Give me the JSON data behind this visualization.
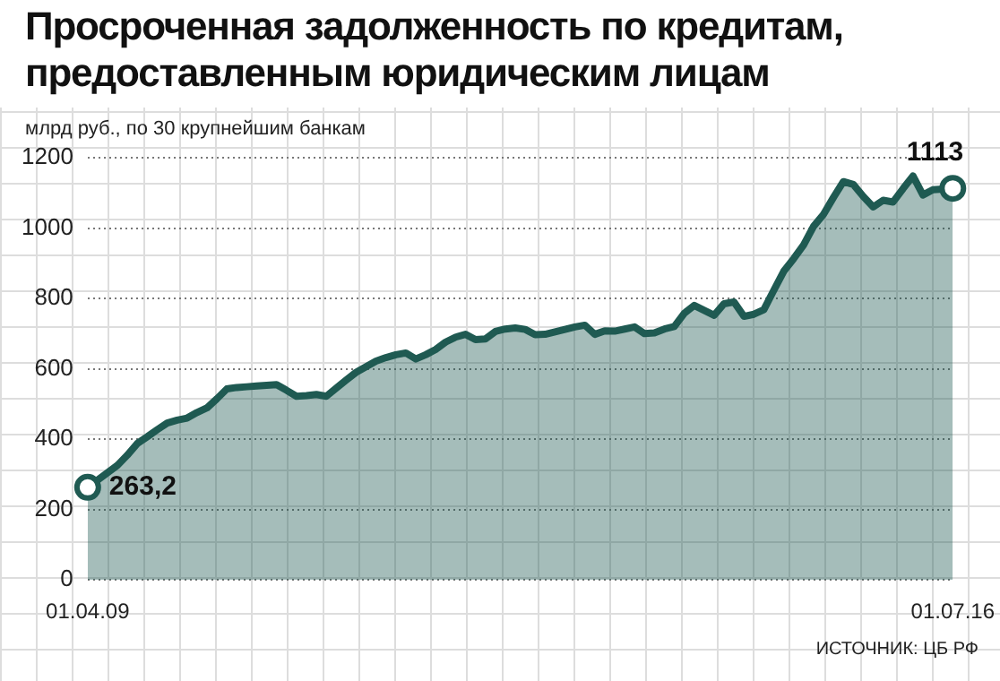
{
  "chart_data": {
    "type": "area",
    "title": "Просроченная задолженность по кредитам,\nпредоставленным юридическим лицам",
    "ylabel": "млрд руб., по 30 крупнейшим банкам",
    "categories": [
      "01.04.09",
      null,
      null,
      null,
      null,
      null,
      null,
      null,
      null,
      null,
      null,
      null,
      null,
      null,
      null,
      null,
      null,
      null,
      null,
      null,
      null,
      null,
      null,
      null,
      null,
      null,
      null,
      null,
      null,
      null,
      null,
      null,
      null,
      null,
      null,
      null,
      null,
      null,
      null,
      null,
      null,
      null,
      null,
      null,
      null,
      null,
      null,
      null,
      null,
      null,
      null,
      null,
      null,
      null,
      null,
      null,
      null,
      null,
      null,
      null,
      null,
      null,
      null,
      null,
      null,
      null,
      null,
      null,
      null,
      null,
      null,
      null,
      null,
      null,
      null,
      null,
      null,
      null,
      null,
      null,
      null,
      null,
      null,
      null,
      null,
      null,
      null,
      "01.07.16"
    ],
    "series": [
      {
        "color": "#1f5a52",
        "values": [
          263.2,
          284,
          305,
          326,
          355,
          388,
          407,
          427,
          446,
          454,
          460,
          476,
          489,
          515,
          543,
          547,
          549,
          551,
          553,
          555,
          539,
          522,
          524,
          527,
          522,
          545,
          568,
          590,
          606,
          622,
          632,
          640,
          645,
          628,
          640,
          655,
          676,
          690,
          698,
          683,
          685,
          706,
          713,
          716,
          712,
          697,
          698,
          705,
          712,
          719,
          724,
          698,
          708,
          707,
          713,
          719,
          700,
          702,
          713,
          720,
          758,
          780,
          766,
          752,
          785,
          790,
          749,
          755,
          768,
          823,
          877,
          913,
          952,
          1005,
          1039,
          1087,
          1132,
          1124,
          1090,
          1060,
          1079,
          1074,
          1112,
          1148,
          1094,
          1109,
          1111,
          1113
        ]
      }
    ],
    "ylim": [
      0,
      1200
    ],
    "yticks": [
      0,
      200,
      400,
      600,
      800,
      1000,
      1200
    ],
    "grid": "y",
    "legend": false,
    "marker": "none",
    "annotations": [
      {
        "text": "263,2",
        "x": "01.04.09",
        "y": 263.2
      },
      {
        "text": "1113",
        "x": "01.07.16",
        "y": 1113
      },
      "ИСТОЧНИК: ЦБ РФ"
    ]
  }
}
